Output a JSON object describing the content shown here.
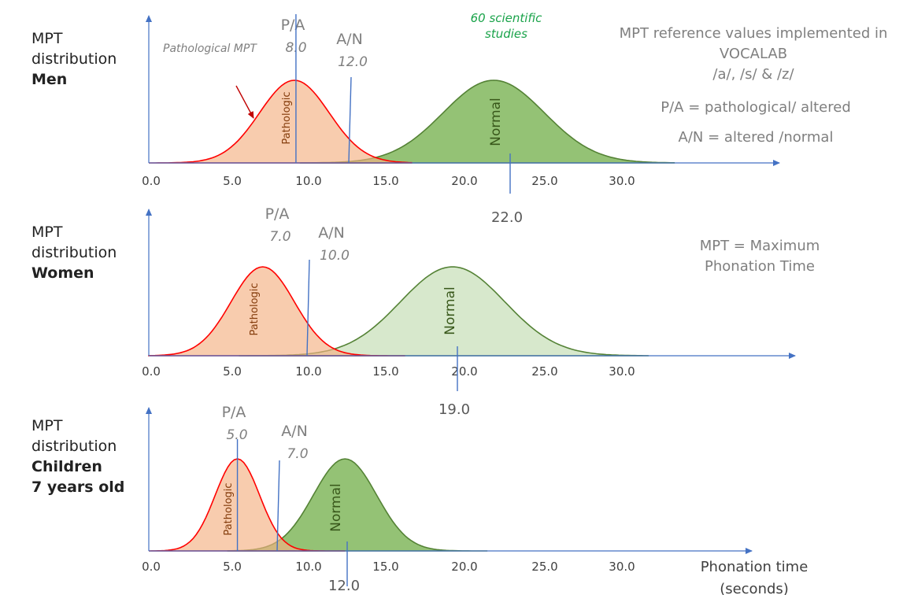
{
  "colors": {
    "axis": "#4472c4",
    "pathologic_fill": "#f4b183",
    "pathologic_line": "#ff0000",
    "normal_fill": "#70ad47",
    "normal_line": "#548235",
    "marker": "#4472c4",
    "tick_text": "#404040",
    "value_text": "#7f7f7f",
    "studies_text": "#1aa34a",
    "arrow": "#c00000"
  },
  "studies_note": [
    "60 scientific",
    "studies"
  ],
  "legend_notes": {
    "implemented": [
      "MPT reference values implemented in",
      "VOCALAB",
      "/a/, /s/ & /z/"
    ],
    "pa": "P/A = pathological/ altered",
    "an": "A/N = altered /normal",
    "mpt": [
      "MPT = Maximum",
      "Phonation Time"
    ]
  },
  "chart_data": [
    {
      "type": "area",
      "group_label": [
        "MPT",
        "distribution",
        "Men"
      ],
      "x_ticks": [
        "0.0",
        "5.0",
        "10.0",
        "15.0",
        "20.0",
        "25.0",
        "30.0"
      ],
      "xlim": [
        0,
        38
      ],
      "pathologic": {
        "label": "Pathologic",
        "mean": 9.2,
        "sd": 2.2,
        "x_range": [
          0.0,
          16.6
        ]
      },
      "normal": {
        "label": "Normal",
        "mean": 21.8,
        "sd": 3.2,
        "x_range": [
          9.6,
          33.2
        ]
      },
      "pa": {
        "label": "P/A",
        "value": "8.0",
        "x": 9.3
      },
      "an": {
        "label": "A/N",
        "value": "12.0",
        "x": 12.6
      },
      "normal_mean_label": "22.0",
      "annotation": "Pathological MPT"
    },
    {
      "type": "area",
      "group_label": [
        "MPT",
        "distribution",
        "Women"
      ],
      "x_ticks": [
        "0.0",
        "5.0",
        "10.0",
        "15.0",
        "20.0",
        "25.0",
        "30.0"
      ],
      "xlim": [
        0,
        38
      ],
      "pathologic": {
        "label": "Pathologic",
        "mean": 7.2,
        "sd": 2.0,
        "x_range": [
          0.0,
          16.2
        ]
      },
      "normal": {
        "label": "Normal",
        "mean": 19.2,
        "sd": 3.3,
        "x_range": [
          5.7,
          31.6
        ]
      },
      "pa": {
        "label": "P/A",
        "value": "7.0"
      },
      "an": {
        "label": "A/N",
        "value": "10.0",
        "x": 10.3
      },
      "normal_mean_label": "19.0"
    },
    {
      "type": "area",
      "group_label": [
        "MPT",
        "distribution",
        "Children",
        "7 years old"
      ],
      "x_ticks": [
        "0.0",
        "5.0",
        "10.0",
        "15.0",
        "20.0",
        "25.0",
        "30.0"
      ],
      "xlim": [
        0,
        38
      ],
      "pathologic": {
        "label": "Pathologic",
        "mean": 5.6,
        "sd": 1.4,
        "x_range": [
          0.0,
          12.4
        ]
      },
      "normal": {
        "label": "Normal",
        "mean": 12.4,
        "sd": 2.0,
        "x_range": [
          5.0,
          21.4
        ]
      },
      "pa": {
        "label": "P/A",
        "value": "5.0",
        "x": 5.6
      },
      "an": {
        "label": "A/N",
        "value": "7.0",
        "x": 8.4
      },
      "normal_mean_label": "12.0",
      "xlabel": [
        "Phonation time",
        "(seconds)"
      ]
    }
  ]
}
